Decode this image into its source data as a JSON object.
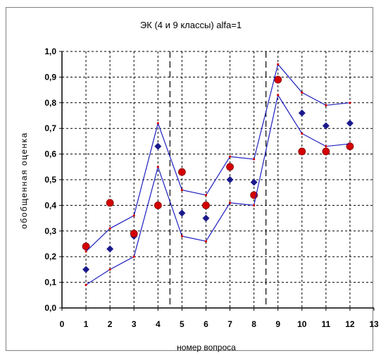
{
  "chart_data": {
    "type": "scatter",
    "title": "ЭК (4 и 9 классы)  alfa=1",
    "xlabel": "номер вопроса",
    "ylabel": "обобщенная оценка",
    "xlim": [
      0,
      13
    ],
    "ylim": [
      0,
      1.0
    ],
    "x_ticks": [
      0,
      1,
      2,
      3,
      4,
      5,
      6,
      7,
      8,
      9,
      10,
      11,
      12,
      13
    ],
    "x_tick_labels": [
      "0",
      "1",
      "2",
      "3",
      "4",
      "5",
      "6",
      "7",
      "8",
      "9",
      "10",
      "11",
      "12",
      "13"
    ],
    "y_ticks": [
      0,
      0.1,
      0.2,
      0.3,
      0.4,
      0.5,
      0.6,
      0.7,
      0.8,
      0.9,
      1.0
    ],
    "y_tick_labels": [
      "0,0",
      "0,1",
      "0,2",
      "0,3",
      "0,4",
      "0,5",
      "0,6",
      "0,7",
      "0,8",
      "0,9",
      "1,0"
    ],
    "grid": true,
    "vertical_separators": [
      4.5,
      8.5
    ],
    "series": [
      {
        "marker": "diamond",
        "color": "#1a1a8c",
        "x": [
          1,
          2,
          3,
          4,
          5,
          6,
          7,
          8,
          9,
          10,
          11,
          12
        ],
        "values": [
          0.15,
          0.23,
          0.28,
          0.63,
          0.37,
          0.35,
          0.5,
          0.49,
          0.89,
          0.76,
          0.71,
          0.72
        ]
      },
      {
        "marker": "circle",
        "color": "#d40000",
        "x": [
          1,
          2,
          3,
          4,
          5,
          6,
          7,
          8,
          9,
          10,
          11,
          12
        ],
        "values": [
          0.24,
          0.41,
          0.29,
          0.4,
          0.53,
          0.4,
          0.55,
          0.44,
          0.89,
          0.61,
          0.61,
          0.63
        ]
      },
      {
        "marker": "line",
        "color": "#1f1fbf",
        "x": [
          1,
          2,
          3,
          4,
          5,
          6,
          7,
          8,
          9,
          10,
          11,
          12
        ],
        "values": [
          0.22,
          0.31,
          0.36,
          0.72,
          0.46,
          0.44,
          0.59,
          0.58,
          0.95,
          0.84,
          0.79,
          0.8
        ]
      },
      {
        "marker": "line",
        "color": "#1f1fbf",
        "x": [
          1,
          2,
          3,
          4,
          5,
          6,
          7,
          8,
          9,
          10,
          11,
          12
        ],
        "values": [
          0.09,
          0.15,
          0.2,
          0.55,
          0.28,
          0.26,
          0.41,
          0.4,
          0.83,
          0.68,
          0.63,
          0.64
        ]
      }
    ]
  }
}
